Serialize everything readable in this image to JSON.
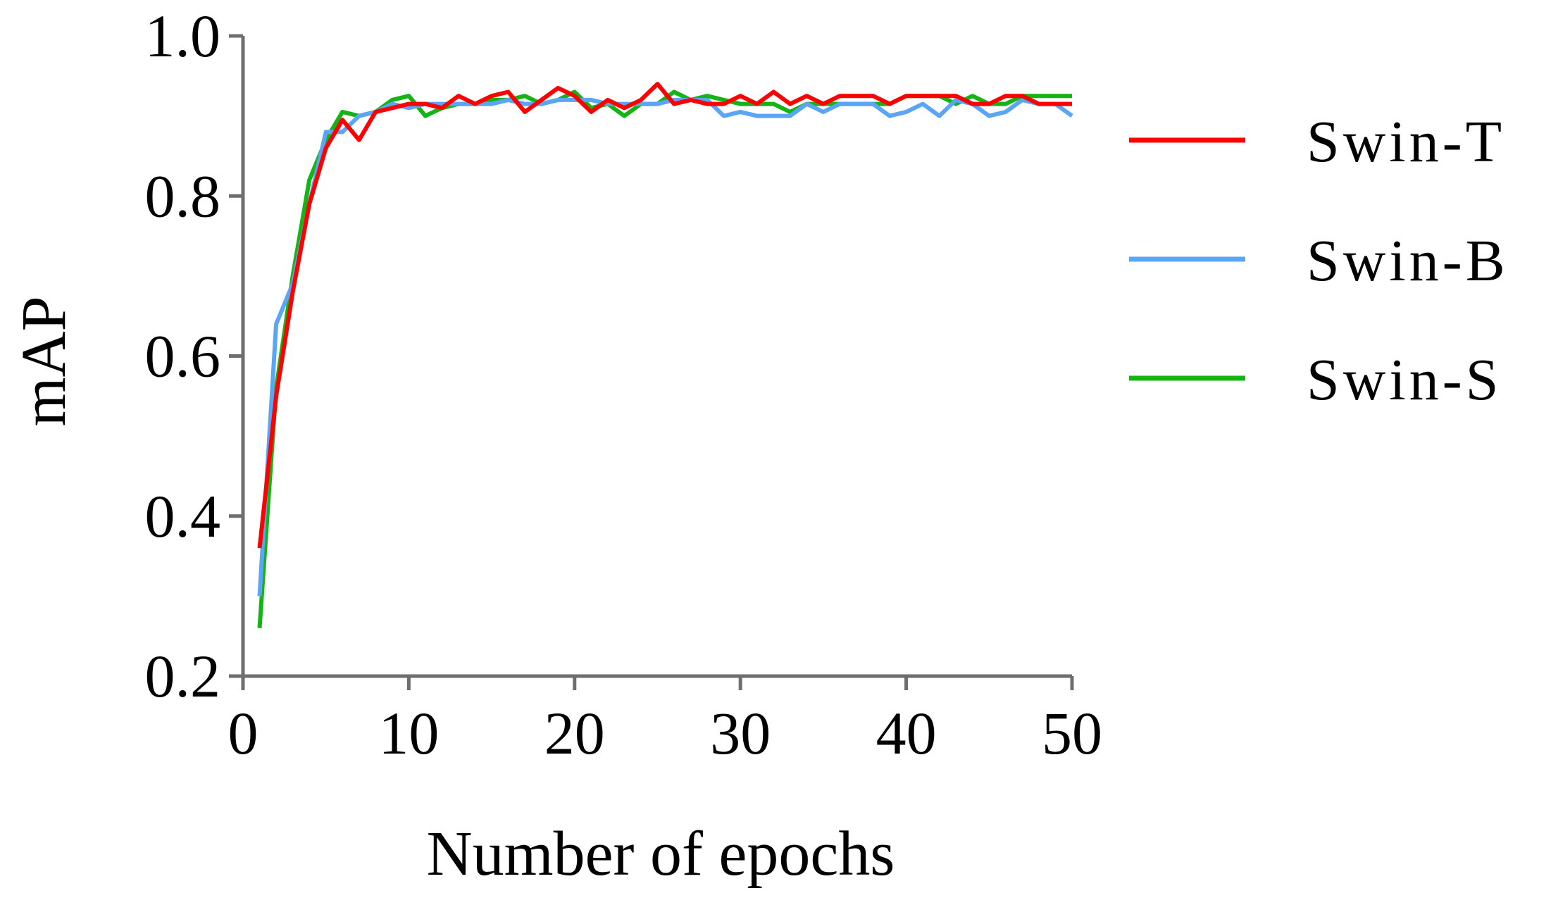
{
  "chart_data": {
    "type": "line",
    "title": "",
    "xlabel": "Number of epochs",
    "ylabel": "mAP",
    "xlim": [
      0,
      50
    ],
    "ylim": [
      0.2,
      1.0
    ],
    "xticks": [
      0,
      10,
      20,
      30,
      40,
      50
    ],
    "yticks": [
      0.2,
      0.4,
      0.6,
      0.8,
      1.0
    ],
    "xtick_labels": [
      "0",
      "10",
      "20",
      "30",
      "40",
      "50"
    ],
    "ytick_labels": [
      "0.2",
      "0.4",
      "0.6",
      "0.8",
      "1.0"
    ],
    "grid": false,
    "legend_position": "right",
    "x": [
      1,
      2,
      3,
      4,
      5,
      6,
      7,
      8,
      9,
      10,
      11,
      12,
      13,
      14,
      15,
      16,
      17,
      18,
      19,
      20,
      21,
      22,
      23,
      24,
      25,
      26,
      27,
      28,
      29,
      30,
      31,
      32,
      33,
      34,
      35,
      36,
      37,
      38,
      39,
      40,
      41,
      42,
      43,
      44,
      45,
      46,
      47,
      48,
      49,
      50
    ],
    "series": [
      {
        "name": "Swin-T",
        "color": "#ff0000",
        "values": [
          0.36,
          0.55,
          0.68,
          0.79,
          0.86,
          0.895,
          0.87,
          0.905,
          0.91,
          0.915,
          0.915,
          0.91,
          0.925,
          0.915,
          0.925,
          0.93,
          0.905,
          0.92,
          0.935,
          0.925,
          0.905,
          0.92,
          0.91,
          0.92,
          0.94,
          0.915,
          0.92,
          0.915,
          0.915,
          0.925,
          0.915,
          0.93,
          0.915,
          0.925,
          0.915,
          0.925,
          0.925,
          0.925,
          0.915,
          0.925,
          0.925,
          0.925,
          0.925,
          0.915,
          0.915,
          0.925,
          0.925,
          0.915,
          0.915,
          0.915
        ]
      },
      {
        "name": "Swin-B",
        "color": "#5aa5f5",
        "values": [
          0.3,
          0.64,
          0.69,
          0.79,
          0.88,
          0.88,
          0.9,
          0.905,
          0.915,
          0.91,
          0.915,
          0.915,
          0.915,
          0.915,
          0.915,
          0.92,
          0.915,
          0.915,
          0.92,
          0.92,
          0.92,
          0.915,
          0.915,
          0.915,
          0.915,
          0.92,
          0.92,
          0.92,
          0.9,
          0.905,
          0.9,
          0.9,
          0.9,
          0.915,
          0.905,
          0.915,
          0.915,
          0.915,
          0.9,
          0.905,
          0.915,
          0.9,
          0.92,
          0.915,
          0.9,
          0.905,
          0.92,
          0.915,
          0.915,
          0.9
        ]
      },
      {
        "name": "Swin-S",
        "color": "#14b414",
        "values": [
          0.26,
          0.56,
          0.7,
          0.82,
          0.87,
          0.905,
          0.9,
          0.905,
          0.92,
          0.925,
          0.9,
          0.91,
          0.915,
          0.915,
          0.92,
          0.92,
          0.925,
          0.915,
          0.92,
          0.93,
          0.91,
          0.915,
          0.9,
          0.915,
          0.915,
          0.93,
          0.92,
          0.925,
          0.92,
          0.915,
          0.915,
          0.915,
          0.905,
          0.915,
          0.915,
          0.915,
          0.915,
          0.915,
          0.915,
          0.925,
          0.925,
          0.925,
          0.915,
          0.925,
          0.915,
          0.915,
          0.925,
          0.925,
          0.925,
          0.925
        ]
      }
    ]
  }
}
